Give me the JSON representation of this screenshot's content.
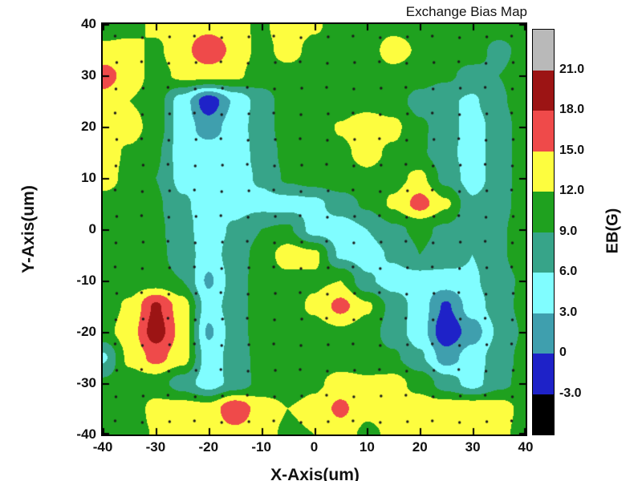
{
  "title": "Exchange Bias Map",
  "axes": {
    "x_label": "X-Axis(um)",
    "y_label": "Y-Axis(um)",
    "x_ticks": [
      "-40",
      "-30",
      "-20",
      "-10",
      "0",
      "10",
      "20",
      "30",
      "40"
    ],
    "y_ticks": [
      "40",
      "30",
      "20",
      "10",
      "0",
      "-10",
      "-20",
      "-30",
      "-40"
    ]
  },
  "colorbar": {
    "label": "EB(G)",
    "tick_labels": [
      "21.0",
      "18.0",
      "15.0",
      "12.0",
      "9.0",
      "6.0",
      "3.0",
      "0",
      "-3.0"
    ],
    "segment_colors_top_to_bottom": [
      "#b9b9b9",
      "#9c1414",
      "#ef4a4a",
      "#fdfd3f",
      "#1fa11f",
      "#37a489",
      "#80fdff",
      "#3f9fae",
      "#1e22c8",
      "#000000"
    ]
  },
  "chart_data": {
    "type": "heatmap",
    "subtype": "filled-contour-map",
    "title": "Exchange Bias Map",
    "xlabel": "X-Axis(um)",
    "ylabel": "Y-Axis(um)",
    "zlabel": "EB(G)",
    "xlim": [
      -40,
      40
    ],
    "ylim": [
      -40,
      40
    ],
    "grid": "off",
    "legend_position": "right-colorbar",
    "levels": [
      -3,
      0,
      3,
      6,
      9,
      12,
      15,
      18,
      21
    ],
    "level_colors_low_to_high": [
      "#000000",
      "#1e22c8",
      "#3f9fae",
      "#80fdff",
      "#37a489",
      "#1fa11f",
      "#fdfd3f",
      "#ef4a4a",
      "#9c1414",
      "#b9b9b9"
    ],
    "x": [
      -40,
      -35,
      -30,
      -25,
      -20,
      -15,
      -10,
      -5,
      0,
      5,
      10,
      15,
      20,
      25,
      30,
      35,
      40
    ],
    "y_rows_top_to_bottom": [
      40,
      35,
      30,
      25,
      20,
      15,
      10,
      5,
      0,
      -5,
      -10,
      -15,
      -20,
      -25,
      -30,
      -35,
      -40
    ],
    "z": [
      [
        10.5,
        11.0,
        12.6,
        13.2,
        13.6,
        12.8,
        11.5,
        13.8,
        12.5,
        10.5,
        10.5,
        10.8,
        10.5,
        10.5,
        10.8,
        11.0,
        10.5
      ],
      [
        12.6,
        12.8,
        11.5,
        13.8,
        17.8,
        14.0,
        11.0,
        13.2,
        11.0,
        10.5,
        10.5,
        13.6,
        11.5,
        10.5,
        10.5,
        8.0,
        10.2
      ],
      [
        16.6,
        13.5,
        11.0,
        12.6,
        13.0,
        12.6,
        10.5,
        10.8,
        10.5,
        10.5,
        10.5,
        10.8,
        10.2,
        9.5,
        8.0,
        9.0,
        10.5
      ],
      [
        13.6,
        12.0,
        10.5,
        4.5,
        -2.0,
        3.5,
        7.5,
        10.5,
        10.5,
        10.5,
        10.8,
        10.2,
        8.0,
        6.5,
        5.5,
        8.5,
        10.5
      ],
      [
        13.8,
        13.5,
        10.5,
        4.5,
        1.5,
        4.5,
        7.5,
        10.5,
        10.8,
        12.2,
        13.8,
        12.8,
        9.5,
        7.5,
        4.5,
        7.5,
        10.5
      ],
      [
        13.5,
        11.5,
        9.5,
        4.5,
        4.5,
        4.5,
        7.0,
        10.0,
        10.5,
        11.5,
        12.8,
        11.5,
        9.5,
        7.0,
        4.5,
        7.5,
        10.5
      ],
      [
        13.5,
        11.0,
        9.0,
        5.0,
        4.5,
        4.5,
        6.5,
        9.5,
        10.5,
        11.0,
        11.5,
        11.0,
        12.8,
        8.0,
        4.5,
        7.5,
        10.5
      ],
      [
        10.5,
        10.5,
        9.5,
        6.5,
        4.5,
        4.8,
        5.0,
        4.8,
        5.2,
        7.5,
        9.5,
        12.5,
        16.2,
        12.5,
        6.5,
        8.0,
        10.2
      ],
      [
        10.5,
        10.2,
        9.8,
        7.0,
        4.5,
        6.5,
        9.0,
        9.5,
        4.8,
        4.5,
        6.0,
        8.5,
        9.5,
        8.5,
        6.5,
        8.5,
        10.5
      ],
      [
        10.5,
        10.5,
        10.0,
        7.5,
        4.5,
        7.5,
        10.2,
        13.6,
        12.8,
        5.5,
        4.5,
        6.5,
        9.0,
        8.0,
        6.0,
        8.5,
        10.5
      ],
      [
        10.5,
        10.5,
        10.2,
        9.0,
        2.5,
        7.5,
        10.5,
        11.0,
        11.5,
        12.0,
        6.5,
        4.5,
        4.5,
        4.5,
        5.5,
        8.0,
        9.5
      ],
      [
        10.5,
        12.5,
        18.5,
        13.5,
        4.5,
        7.5,
        10.5,
        10.8,
        12.5,
        16.0,
        12.5,
        8.0,
        4.5,
        -0.5,
        4.5,
        7.5,
        10.0
      ],
      [
        11.0,
        13.5,
        19.6,
        14.0,
        2.5,
        7.5,
        10.5,
        10.5,
        10.8,
        11.5,
        10.5,
        7.5,
        4.5,
        -2.5,
        1.5,
        6.5,
        9.5
      ],
      [
        5.5,
        12.8,
        16.0,
        13.5,
        4.5,
        7.2,
        10.2,
        10.5,
        10.5,
        10.5,
        10.2,
        9.5,
        6.5,
        1.5,
        4.5,
        7.5,
        10.0
      ],
      [
        9.5,
        10.5,
        10.5,
        7.5,
        4.5,
        7.0,
        10.0,
        10.5,
        11.5,
        13.0,
        12.5,
        13.0,
        11.0,
        7.5,
        4.8,
        8.0,
        10.2
      ],
      [
        10.2,
        10.5,
        12.8,
        13.5,
        13.2,
        17.5,
        13.5,
        12.0,
        12.8,
        15.8,
        12.5,
        13.0,
        13.5,
        13.8,
        14.2,
        13.5,
        11.0
      ],
      [
        10.5,
        10.8,
        12.2,
        13.2,
        13.5,
        14.0,
        13.0,
        11.5,
        12.0,
        13.0,
        11.5,
        12.5,
        13.2,
        13.5,
        13.8,
        12.8,
        10.8
      ]
    ],
    "measurement_dot_grid": {
      "x_start": -37.5,
      "y_start": -37.5,
      "step": 5,
      "count_x": 16,
      "count_y": 16,
      "dot_color": "#1a1a1a"
    }
  }
}
